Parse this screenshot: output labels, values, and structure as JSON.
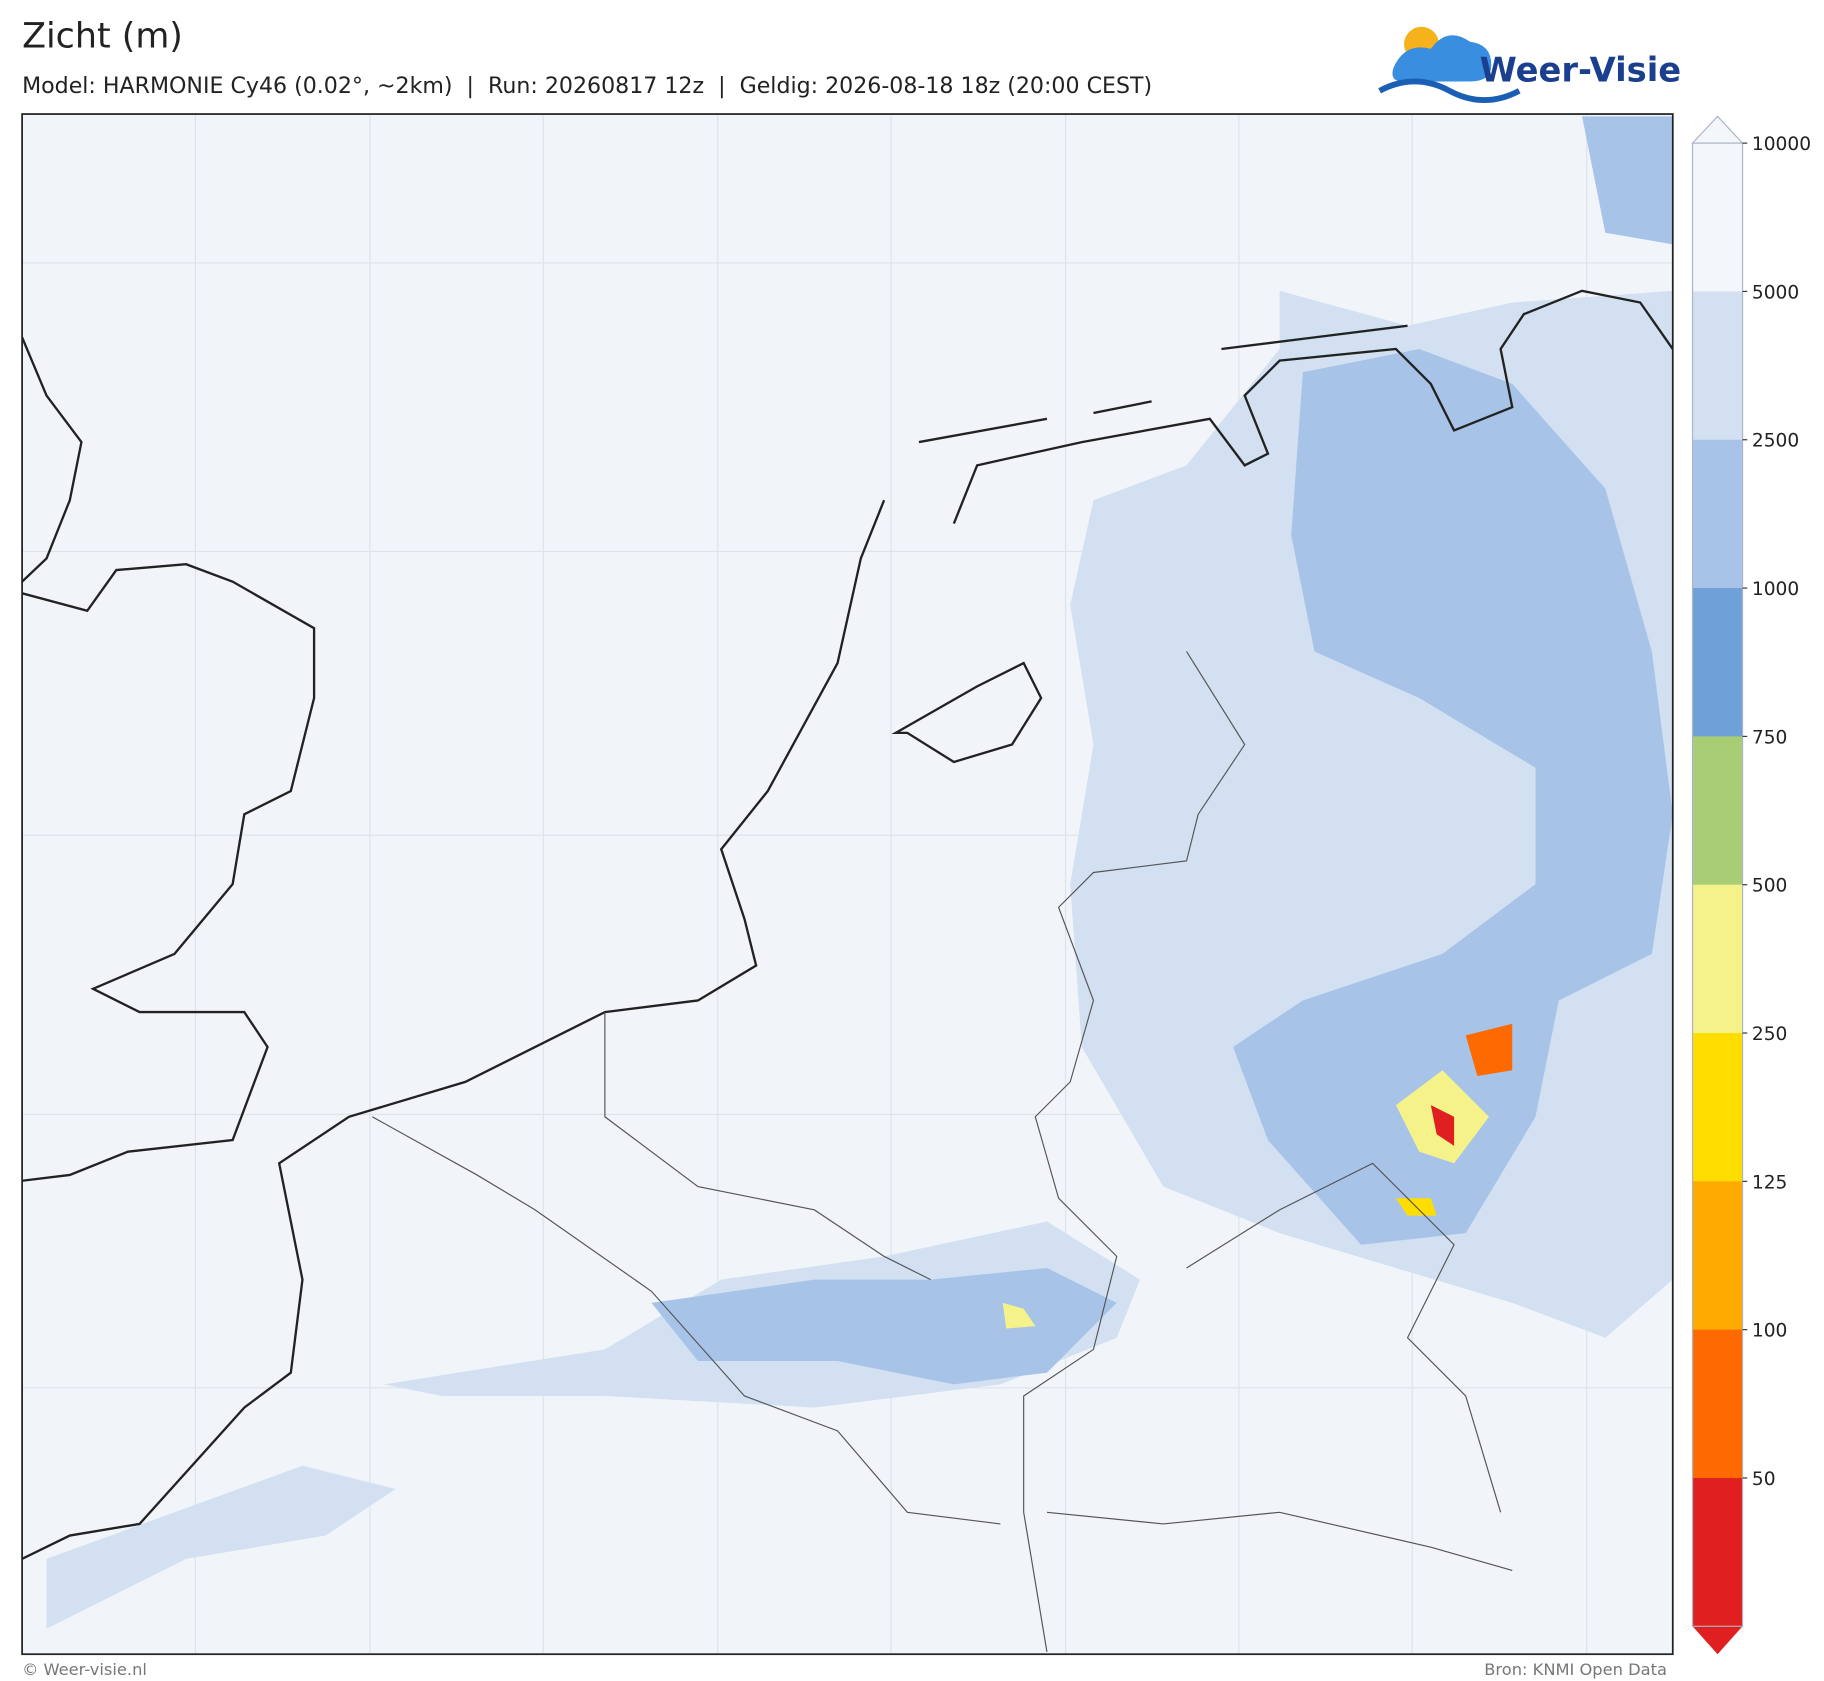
{
  "header": {
    "title": "Zicht (m)",
    "subtitle": "Model: HARMONIE Cy46 (0.02°, ~2km)  |  Run: 20260817 12z  |  Geldig: 2026-08-18 18z (20:00 CEST)"
  },
  "logo": {
    "text": "Weer-Visie"
  },
  "colorbar": {
    "levels": [
      10000,
      5000,
      2500,
      1000,
      750,
      500,
      250,
      125,
      100,
      50
    ],
    "colors": [
      "#f3f6fb",
      "#d2e0f1",
      "#a7c4e8",
      "#6fa0d8",
      "#a8cd74",
      "#f5f28a",
      "#ffdd00",
      "#ffaa00",
      "#ff6a00",
      "#e02020"
    ]
  },
  "footer": {
    "left": "© Weer-visie.nl",
    "right": "Bron: KNMI Open Data"
  }
}
